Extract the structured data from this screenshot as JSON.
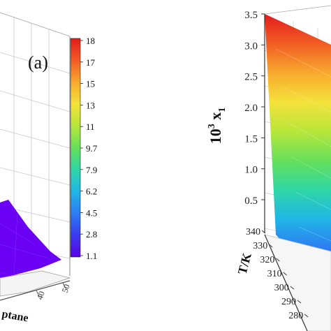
{
  "chart_data": [
    {
      "type": "surface3d",
      "panel_label": "(a)",
      "xlabel_partial": "ptane",
      "x_ticks": [
        "40",
        "50"
      ],
      "colorbar": {
        "ticks": [
          "1.1",
          "2.8",
          "4.5",
          "6.2",
          "7.9",
          "9.7",
          "11",
          "13",
          "15",
          "17",
          "18"
        ],
        "colors": [
          "#5a00e6",
          "#3a3cf0",
          "#2d7cf2",
          "#20b6e6",
          "#2fd6a6",
          "#66e05a",
          "#b8e63a",
          "#f4e23a",
          "#f7a92e",
          "#f25c24",
          "#e01c1c"
        ]
      }
    },
    {
      "type": "surface3d",
      "zlabel": "10",
      "zlabel_sup": "3",
      "zlabel_tail": " x",
      "zlabel_sub": "1",
      "z_ticks": [
        "0.5",
        "1.0",
        "1.5",
        "2.0",
        "2.5",
        "3.0",
        "3.5"
      ],
      "ylabel": "T/K",
      "y_ticks": [
        "340",
        "330",
        "320",
        "310",
        "300",
        "290",
        "280"
      ],
      "surface_colors": [
        "#e01c1c",
        "#f25c24",
        "#f7a92e",
        "#f4e23a",
        "#b8e63a",
        "#66e05a",
        "#2fd6a6",
        "#20b6e6",
        "#2d7cf2",
        "#3a3cf0"
      ]
    }
  ]
}
